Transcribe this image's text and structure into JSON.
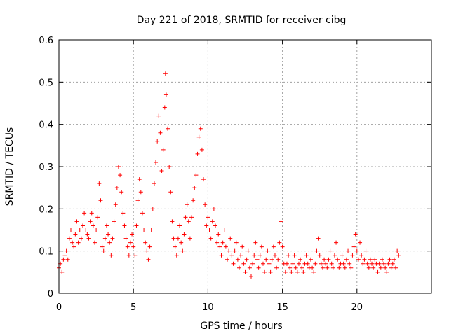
{
  "chart_data": {
    "type": "scatter",
    "title": "Day 221 of 2018, SRMTID for receiver cibg",
    "xlabel": "GPS time / hours",
    "ylabel": "SRMTID / TECUs",
    "xlim": [
      0,
      25
    ],
    "ylim": [
      0,
      0.6
    ],
    "xticks": [
      0,
      5,
      10,
      15,
      20
    ],
    "yticks": [
      0,
      0.1,
      0.2,
      0.3,
      0.4,
      0.5,
      0.6
    ],
    "xtick_labels": [
      "0",
      "5",
      "10",
      "15",
      "20"
    ],
    "ytick_labels": [
      "0",
      "0.1",
      "0.2",
      "0.3",
      "0.4",
      "0.5",
      "0.6"
    ],
    "grid": true,
    "marker": "+",
    "color": "#ff0000",
    "series": [
      {
        "name": "SRMTID",
        "points": [
          [
            0.0,
            0.06
          ],
          [
            0.1,
            0.07
          ],
          [
            0.2,
            0.05
          ],
          [
            0.3,
            0.08
          ],
          [
            0.4,
            0.09
          ],
          [
            0.5,
            0.1
          ],
          [
            0.6,
            0.08
          ],
          [
            0.7,
            0.13
          ],
          [
            0.8,
            0.15
          ],
          [
            0.9,
            0.12
          ],
          [
            1.0,
            0.11
          ],
          [
            1.1,
            0.14
          ],
          [
            1.2,
            0.17
          ],
          [
            1.3,
            0.12
          ],
          [
            1.4,
            0.15
          ],
          [
            1.5,
            0.13
          ],
          [
            1.6,
            0.16
          ],
          [
            1.7,
            0.19
          ],
          [
            1.8,
            0.15
          ],
          [
            1.9,
            0.14
          ],
          [
            2.0,
            0.13
          ],
          [
            2.1,
            0.17
          ],
          [
            2.2,
            0.19
          ],
          [
            2.3,
            0.16
          ],
          [
            2.4,
            0.12
          ],
          [
            2.5,
            0.15
          ],
          [
            2.6,
            0.18
          ],
          [
            2.7,
            0.26
          ],
          [
            2.8,
            0.22
          ],
          [
            2.9,
            0.11
          ],
          [
            3.0,
            0.1
          ],
          [
            3.1,
            0.13
          ],
          [
            3.2,
            0.16
          ],
          [
            3.3,
            0.14
          ],
          [
            3.4,
            0.12
          ],
          [
            3.5,
            0.09
          ],
          [
            3.6,
            0.13
          ],
          [
            3.7,
            0.17
          ],
          [
            3.8,
            0.21
          ],
          [
            3.9,
            0.25
          ],
          [
            4.0,
            0.3
          ],
          [
            4.1,
            0.28
          ],
          [
            4.2,
            0.24
          ],
          [
            4.3,
            0.19
          ],
          [
            4.4,
            0.16
          ],
          [
            4.5,
            0.13
          ],
          [
            4.6,
            0.11
          ],
          [
            4.7,
            0.09
          ],
          [
            4.8,
            0.12
          ],
          [
            4.9,
            0.14
          ],
          [
            5.0,
            0.11
          ],
          [
            5.1,
            0.09
          ],
          [
            5.2,
            0.16
          ],
          [
            5.3,
            0.22
          ],
          [
            5.4,
            0.27
          ],
          [
            5.5,
            0.24
          ],
          [
            5.6,
            0.19
          ],
          [
            5.7,
            0.15
          ],
          [
            5.8,
            0.12
          ],
          [
            5.9,
            0.1
          ],
          [
            6.0,
            0.08
          ],
          [
            6.1,
            0.11
          ],
          [
            6.2,
            0.15
          ],
          [
            6.3,
            0.2
          ],
          [
            6.4,
            0.26
          ],
          [
            6.5,
            0.31
          ],
          [
            6.6,
            0.36
          ],
          [
            6.7,
            0.42
          ],
          [
            6.8,
            0.38
          ],
          [
            6.9,
            0.29
          ],
          [
            7.0,
            0.34
          ],
          [
            7.1,
            0.44
          ],
          [
            7.15,
            0.52
          ],
          [
            7.2,
            0.47
          ],
          [
            7.3,
            0.39
          ],
          [
            7.4,
            0.3
          ],
          [
            7.5,
            0.24
          ],
          [
            7.6,
            0.17
          ],
          [
            7.7,
            0.13
          ],
          [
            7.8,
            0.11
          ],
          [
            7.9,
            0.09
          ],
          [
            8.0,
            0.13
          ],
          [
            8.1,
            0.16
          ],
          [
            8.2,
            0.12
          ],
          [
            8.3,
            0.1
          ],
          [
            8.4,
            0.14
          ],
          [
            8.5,
            0.18
          ],
          [
            8.6,
            0.21
          ],
          [
            8.7,
            0.17
          ],
          [
            8.8,
            0.13
          ],
          [
            8.9,
            0.18
          ],
          [
            9.0,
            0.22
          ],
          [
            9.1,
            0.25
          ],
          [
            9.2,
            0.28
          ],
          [
            9.3,
            0.33
          ],
          [
            9.4,
            0.37
          ],
          [
            9.5,
            0.39
          ],
          [
            9.6,
            0.34
          ],
          [
            9.7,
            0.27
          ],
          [
            9.8,
            0.21
          ],
          [
            9.9,
            0.16
          ],
          [
            10.0,
            0.18
          ],
          [
            10.1,
            0.15
          ],
          [
            10.2,
            0.13
          ],
          [
            10.3,
            0.17
          ],
          [
            10.4,
            0.2
          ],
          [
            10.5,
            0.16
          ],
          [
            10.6,
            0.12
          ],
          [
            10.7,
            0.14
          ],
          [
            10.8,
            0.11
          ],
          [
            10.9,
            0.09
          ],
          [
            11.0,
            0.12
          ],
          [
            11.1,
            0.15
          ],
          [
            11.2,
            0.11
          ],
          [
            11.3,
            0.08
          ],
          [
            11.4,
            0.1
          ],
          [
            11.5,
            0.13
          ],
          [
            11.6,
            0.09
          ],
          [
            11.7,
            0.07
          ],
          [
            11.8,
            0.1
          ],
          [
            11.9,
            0.12
          ],
          [
            12.0,
            0.08
          ],
          [
            12.1,
            0.06
          ],
          [
            12.2,
            0.09
          ],
          [
            12.3,
            0.11
          ],
          [
            12.4,
            0.07
          ],
          [
            12.5,
            0.05
          ],
          [
            12.6,
            0.08
          ],
          [
            12.7,
            0.1
          ],
          [
            12.8,
            0.06
          ],
          [
            12.9,
            0.04
          ],
          [
            13.0,
            0.07
          ],
          [
            13.1,
            0.09
          ],
          [
            13.2,
            0.12
          ],
          [
            13.3,
            0.08
          ],
          [
            13.4,
            0.06
          ],
          [
            13.5,
            0.09
          ],
          [
            13.6,
            0.11
          ],
          [
            13.7,
            0.07
          ],
          [
            13.8,
            0.05
          ],
          [
            13.9,
            0.08
          ],
          [
            14.0,
            0.1
          ],
          [
            14.1,
            0.07
          ],
          [
            14.2,
            0.05
          ],
          [
            14.3,
            0.08
          ],
          [
            14.4,
            0.11
          ],
          [
            14.5,
            0.09
          ],
          [
            14.6,
            0.06
          ],
          [
            14.7,
            0.08
          ],
          [
            14.8,
            0.12
          ],
          [
            14.9,
            0.17
          ],
          [
            15.0,
            0.11
          ],
          [
            15.1,
            0.07
          ],
          [
            15.2,
            0.05
          ],
          [
            15.3,
            0.07
          ],
          [
            15.4,
            0.09
          ],
          [
            15.5,
            0.06
          ],
          [
            15.6,
            0.05
          ],
          [
            15.7,
            0.07
          ],
          [
            15.8,
            0.09
          ],
          [
            15.9,
            0.06
          ],
          [
            16.0,
            0.05
          ],
          [
            16.1,
            0.07
          ],
          [
            16.2,
            0.08
          ],
          [
            16.3,
            0.06
          ],
          [
            16.4,
            0.05
          ],
          [
            16.5,
            0.07
          ],
          [
            16.6,
            0.09
          ],
          [
            16.7,
            0.07
          ],
          [
            16.8,
            0.06
          ],
          [
            16.9,
            0.08
          ],
          [
            17.0,
            0.06
          ],
          [
            17.1,
            0.05
          ],
          [
            17.2,
            0.07
          ],
          [
            17.3,
            0.1
          ],
          [
            17.4,
            0.13
          ],
          [
            17.5,
            0.09
          ],
          [
            17.6,
            0.07
          ],
          [
            17.7,
            0.06
          ],
          [
            17.8,
            0.08
          ],
          [
            17.9,
            0.07
          ],
          [
            18.0,
            0.06
          ],
          [
            18.1,
            0.08
          ],
          [
            18.2,
            0.1
          ],
          [
            18.3,
            0.07
          ],
          [
            18.4,
            0.06
          ],
          [
            18.5,
            0.09
          ],
          [
            18.6,
            0.12
          ],
          [
            18.7,
            0.08
          ],
          [
            18.8,
            0.06
          ],
          [
            18.9,
            0.07
          ],
          [
            19.0,
            0.09
          ],
          [
            19.1,
            0.07
          ],
          [
            19.2,
            0.06
          ],
          [
            19.3,
            0.08
          ],
          [
            19.4,
            0.1
          ],
          [
            19.5,
            0.07
          ],
          [
            19.6,
            0.06
          ],
          [
            19.7,
            0.09
          ],
          [
            19.8,
            0.11
          ],
          [
            19.9,
            0.14
          ],
          [
            20.0,
            0.1
          ],
          [
            20.1,
            0.08
          ],
          [
            20.2,
            0.12
          ],
          [
            20.3,
            0.09
          ],
          [
            20.4,
            0.07
          ],
          [
            20.5,
            0.08
          ],
          [
            20.6,
            0.1
          ],
          [
            20.7,
            0.07
          ],
          [
            20.8,
            0.06
          ],
          [
            20.9,
            0.08
          ],
          [
            21.0,
            0.07
          ],
          [
            21.1,
            0.06
          ],
          [
            21.2,
            0.08
          ],
          [
            21.3,
            0.07
          ],
          [
            21.4,
            0.05
          ],
          [
            21.5,
            0.07
          ],
          [
            21.6,
            0.06
          ],
          [
            21.7,
            0.08
          ],
          [
            21.8,
            0.07
          ],
          [
            21.9,
            0.06
          ],
          [
            22.0,
            0.05
          ],
          [
            22.1,
            0.07
          ],
          [
            22.2,
            0.08
          ],
          [
            22.3,
            0.06
          ],
          [
            22.4,
            0.07
          ],
          [
            22.5,
            0.08
          ],
          [
            22.6,
            0.06
          ],
          [
            22.7,
            0.1
          ],
          [
            22.8,
            0.09
          ]
        ]
      }
    ]
  }
}
